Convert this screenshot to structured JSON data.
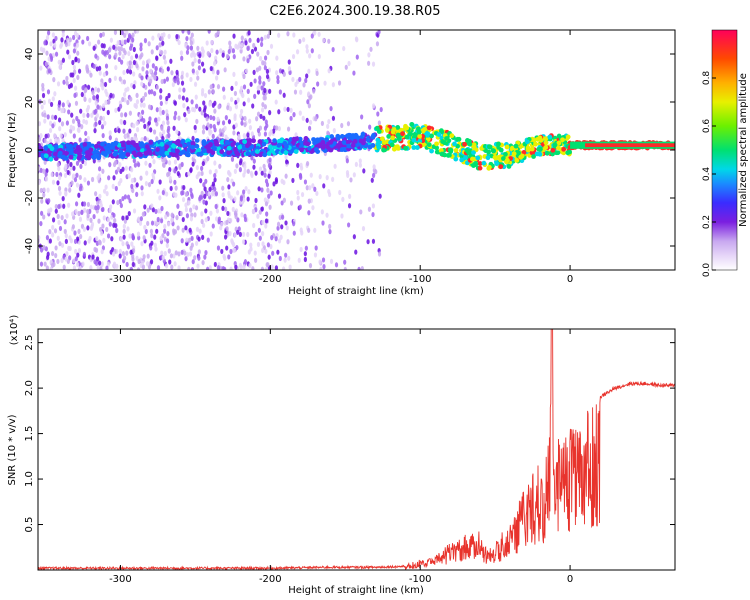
{
  "figure": {
    "title": "C2E6.2024.300.19.38.R05"
  },
  "colors": {
    "snr_line": "#e8332c",
    "axis": "#000000"
  },
  "chart_data": [
    {
      "type": "heatmap",
      "xlabel": "Height of straight line (km)",
      "ylabel": "Frequency (Hz)",
      "xlim": [
        -355,
        70
      ],
      "ylim": [
        -50,
        50
      ],
      "x_ticks": [
        {
          "value": -300,
          "label": "-300"
        },
        {
          "value": -200,
          "label": "-200"
        },
        {
          "value": -100,
          "label": "-100"
        },
        {
          "value": 0,
          "label": "0"
        }
      ],
      "y_ticks": [
        {
          "value": 40,
          "label": "40"
        },
        {
          "value": 20,
          "label": "20"
        },
        {
          "value": 0,
          "label": "0"
        },
        {
          "value": -20,
          "label": "-20"
        },
        {
          "value": -40,
          "label": "-40"
        }
      ],
      "colorbar": {
        "label": "Normalized spectral amplitude",
        "range": [
          0,
          1
        ],
        "ticks": [
          {
            "value": 0.0,
            "label": "0.0"
          },
          {
            "value": 0.2,
            "label": "0.2"
          },
          {
            "value": 0.4,
            "label": "0.4"
          },
          {
            "value": 0.6,
            "label": "0.6"
          },
          {
            "value": 0.8,
            "label": "0.8"
          }
        ]
      },
      "ridge": {
        "x": [
          -355,
          -300,
          -250,
          -200,
          -150,
          -120,
          -100,
          -80,
          -60,
          -40,
          -20,
          0,
          20,
          70
        ],
        "y": [
          -1,
          0,
          1,
          1,
          3,
          5,
          6,
          2,
          -3,
          -2,
          2,
          2,
          2,
          2
        ]
      }
    },
    {
      "type": "line",
      "xlabel": "Height of straight line (km)",
      "ylabel": "SNR (10 * v/v)",
      "scale_label": "(x10⁴)",
      "xlim": [
        -355,
        70
      ],
      "ylim": [
        0,
        2.65
      ],
      "x_ticks": [
        {
          "value": -300,
          "label": "-300"
        },
        {
          "value": -200,
          "label": "-200"
        },
        {
          "value": -100,
          "label": "-100"
        },
        {
          "value": 0,
          "label": "0"
        }
      ],
      "y_ticks": [
        {
          "value": 0.5,
          "label": "0.5"
        },
        {
          "value": 1.0,
          "label": "1.0"
        },
        {
          "value": 1.5,
          "label": "1.5"
        },
        {
          "value": 2.0,
          "label": "2.0"
        },
        {
          "value": 2.5,
          "label": "2.5"
        }
      ],
      "envelope": {
        "x": [
          -355,
          -300,
          -250,
          -200,
          -160,
          -130,
          -110,
          -100,
          -90,
          -80,
          -70,
          -60,
          -55,
          -50,
          -45,
          -40,
          -35,
          -30,
          -25,
          -20,
          -15,
          -12,
          -10,
          -5,
          0,
          10,
          20,
          30,
          40,
          50,
          60,
          70
        ],
        "y": [
          0.02,
          0.02,
          0.02,
          0.02,
          0.03,
          0.03,
          0.04,
          0.1,
          0.18,
          0.3,
          0.38,
          0.42,
          0.2,
          0.3,
          0.45,
          0.55,
          0.75,
          0.95,
          1.15,
          1.2,
          1.3,
          2.65,
          1.4,
          1.5,
          1.6,
          1.75,
          1.9,
          2.0,
          2.05,
          2.05,
          2.03,
          2.03
        ]
      }
    }
  ]
}
